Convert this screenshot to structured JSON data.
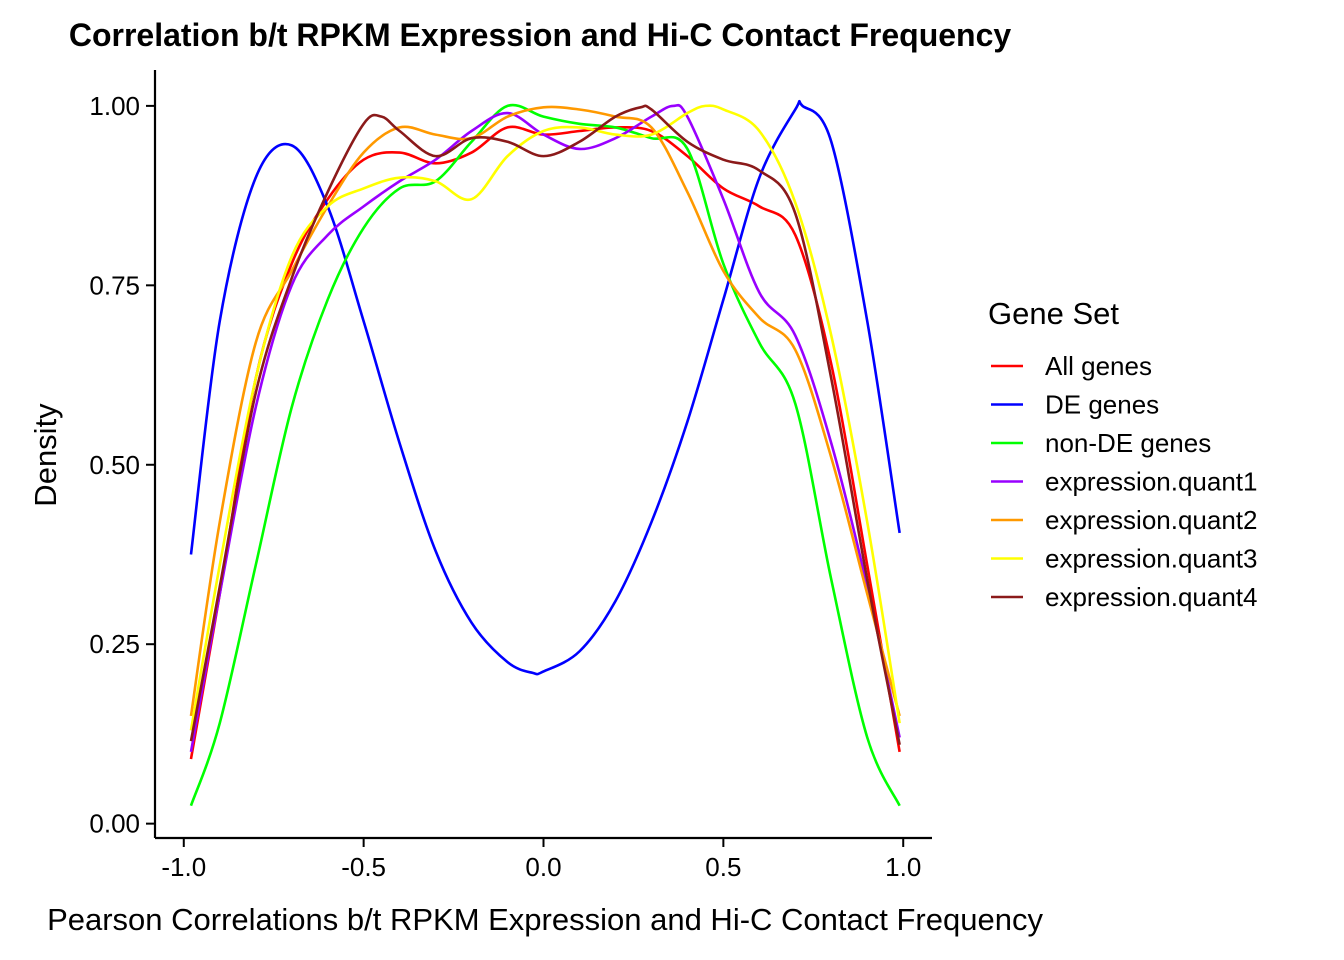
{
  "chart_data": {
    "type": "line",
    "title": "Correlation b/t RPKM Expression and Hi-C Contact Frequency",
    "xlabel": "Pearson Correlations b/t RPKM Expression and Hi-C Contact Frequency",
    "ylabel": "Density",
    "xlim": [
      -1.08,
      1.08
    ],
    "ylim": [
      -0.02,
      1.05
    ],
    "x_ticks": [
      -1.0,
      -0.5,
      0.0,
      0.5,
      1.0
    ],
    "x_tick_labels": [
      "-1.0",
      "-0.5",
      "0.0",
      "0.5",
      "1.0"
    ],
    "y_ticks": [
      0.0,
      0.25,
      0.5,
      0.75,
      1.0
    ],
    "y_tick_labels": [
      "0.00",
      "0.25",
      "0.50",
      "0.75",
      "1.00"
    ],
    "grid": false,
    "legend": {
      "title": "Gene Set",
      "placement": "right"
    },
    "series": [
      {
        "name": "All genes",
        "color": "#FF0000",
        "points": [
          [
            -0.98,
            0.09
          ],
          [
            -0.9,
            0.32
          ],
          [
            -0.8,
            0.62
          ],
          [
            -0.7,
            0.78
          ],
          [
            -0.6,
            0.87
          ],
          [
            -0.5,
            0.925
          ],
          [
            -0.4,
            0.935
          ],
          [
            -0.3,
            0.92
          ],
          [
            -0.2,
            0.935
          ],
          [
            -0.1,
            0.97
          ],
          [
            0.0,
            0.96
          ],
          [
            0.1,
            0.965
          ],
          [
            0.2,
            0.97
          ],
          [
            0.3,
            0.965
          ],
          [
            0.4,
            0.93
          ],
          [
            0.5,
            0.885
          ],
          [
            0.6,
            0.86
          ],
          [
            0.7,
            0.82
          ],
          [
            0.8,
            0.64
          ],
          [
            0.9,
            0.36
          ],
          [
            0.99,
            0.1
          ]
        ]
      },
      {
        "name": "DE genes",
        "color": "#0000FF",
        "points": [
          [
            -0.98,
            0.375
          ],
          [
            -0.9,
            0.7
          ],
          [
            -0.8,
            0.9
          ],
          [
            -0.7,
            0.945
          ],
          [
            -0.6,
            0.86
          ],
          [
            -0.5,
            0.7
          ],
          [
            -0.4,
            0.53
          ],
          [
            -0.3,
            0.38
          ],
          [
            -0.2,
            0.28
          ],
          [
            -0.1,
            0.225
          ],
          [
            -0.03,
            0.21
          ],
          [
            0.0,
            0.212
          ],
          [
            0.1,
            0.24
          ],
          [
            0.2,
            0.31
          ],
          [
            0.3,
            0.42
          ],
          [
            0.4,
            0.56
          ],
          [
            0.5,
            0.73
          ],
          [
            0.6,
            0.9
          ],
          [
            0.7,
            0.995
          ],
          [
            0.72,
            1.0
          ],
          [
            0.8,
            0.95
          ],
          [
            0.9,
            0.7
          ],
          [
            0.99,
            0.405
          ]
        ]
      },
      {
        "name": "non-DE genes",
        "color": "#00FF00",
        "points": [
          [
            -0.98,
            0.025
          ],
          [
            -0.9,
            0.14
          ],
          [
            -0.8,
            0.36
          ],
          [
            -0.7,
            0.58
          ],
          [
            -0.6,
            0.73
          ],
          [
            -0.5,
            0.83
          ],
          [
            -0.4,
            0.885
          ],
          [
            -0.3,
            0.895
          ],
          [
            -0.2,
            0.95
          ],
          [
            -0.1,
            1.0
          ],
          [
            0.0,
            0.985
          ],
          [
            0.1,
            0.975
          ],
          [
            0.2,
            0.97
          ],
          [
            0.3,
            0.955
          ],
          [
            0.4,
            0.94
          ],
          [
            0.5,
            0.78
          ],
          [
            0.6,
            0.67
          ],
          [
            0.7,
            0.585
          ],
          [
            0.8,
            0.34
          ],
          [
            0.9,
            0.12
          ],
          [
            0.99,
            0.025
          ]
        ]
      },
      {
        "name": "expression.quant1",
        "color": "#9900FF",
        "points": [
          [
            -0.98,
            0.1
          ],
          [
            -0.9,
            0.32
          ],
          [
            -0.8,
            0.58
          ],
          [
            -0.7,
            0.75
          ],
          [
            -0.6,
            0.82
          ],
          [
            -0.5,
            0.86
          ],
          [
            -0.4,
            0.895
          ],
          [
            -0.3,
            0.925
          ],
          [
            -0.2,
            0.965
          ],
          [
            -0.1,
            0.99
          ],
          [
            0.0,
            0.96
          ],
          [
            0.1,
            0.94
          ],
          [
            0.2,
            0.955
          ],
          [
            0.3,
            0.985
          ],
          [
            0.36,
            1.0
          ],
          [
            0.4,
            0.985
          ],
          [
            0.5,
            0.87
          ],
          [
            0.6,
            0.74
          ],
          [
            0.7,
            0.68
          ],
          [
            0.8,
            0.53
          ],
          [
            0.9,
            0.33
          ],
          [
            0.99,
            0.12
          ]
        ]
      },
      {
        "name": "expression.quant2",
        "color": "#FF9900",
        "points": [
          [
            -0.98,
            0.15
          ],
          [
            -0.9,
            0.42
          ],
          [
            -0.8,
            0.67
          ],
          [
            -0.7,
            0.77
          ],
          [
            -0.6,
            0.86
          ],
          [
            -0.5,
            0.935
          ],
          [
            -0.4,
            0.97
          ],
          [
            -0.3,
            0.96
          ],
          [
            -0.2,
            0.955
          ],
          [
            -0.1,
            0.985
          ],
          [
            0.0,
            0.998
          ],
          [
            0.1,
            0.995
          ],
          [
            0.2,
            0.985
          ],
          [
            0.3,
            0.97
          ],
          [
            0.4,
            0.88
          ],
          [
            0.5,
            0.77
          ],
          [
            0.6,
            0.705
          ],
          [
            0.7,
            0.66
          ],
          [
            0.8,
            0.51
          ],
          [
            0.9,
            0.32
          ],
          [
            0.99,
            0.15
          ]
        ]
      },
      {
        "name": "expression.quant3",
        "color": "#FFFF00",
        "points": [
          [
            -0.98,
            0.13
          ],
          [
            -0.9,
            0.36
          ],
          [
            -0.8,
            0.62
          ],
          [
            -0.7,
            0.79
          ],
          [
            -0.6,
            0.86
          ],
          [
            -0.5,
            0.885
          ],
          [
            -0.4,
            0.9
          ],
          [
            -0.3,
            0.895
          ],
          [
            -0.2,
            0.87
          ],
          [
            -0.1,
            0.93
          ],
          [
            0.0,
            0.965
          ],
          [
            0.1,
            0.97
          ],
          [
            0.2,
            0.96
          ],
          [
            0.3,
            0.96
          ],
          [
            0.4,
            0.99
          ],
          [
            0.45,
            1.0
          ],
          [
            0.5,
            0.995
          ],
          [
            0.6,
            0.965
          ],
          [
            0.7,
            0.865
          ],
          [
            0.8,
            0.68
          ],
          [
            0.9,
            0.42
          ],
          [
            0.99,
            0.14
          ]
        ]
      },
      {
        "name": "expression.quant4",
        "color": "#8B1A1A",
        "points": [
          [
            -0.98,
            0.115
          ],
          [
            -0.9,
            0.33
          ],
          [
            -0.8,
            0.6
          ],
          [
            -0.7,
            0.76
          ],
          [
            -0.6,
            0.88
          ],
          [
            -0.5,
            0.975
          ],
          [
            -0.45,
            0.985
          ],
          [
            -0.4,
            0.965
          ],
          [
            -0.3,
            0.93
          ],
          [
            -0.2,
            0.955
          ],
          [
            -0.1,
            0.95
          ],
          [
            0.0,
            0.93
          ],
          [
            0.1,
            0.95
          ],
          [
            0.2,
            0.985
          ],
          [
            0.27,
            0.998
          ],
          [
            0.3,
            0.995
          ],
          [
            0.4,
            0.95
          ],
          [
            0.5,
            0.925
          ],
          [
            0.6,
            0.91
          ],
          [
            0.7,
            0.85
          ],
          [
            0.8,
            0.62
          ],
          [
            0.9,
            0.34
          ],
          [
            0.99,
            0.11
          ]
        ]
      }
    ]
  }
}
